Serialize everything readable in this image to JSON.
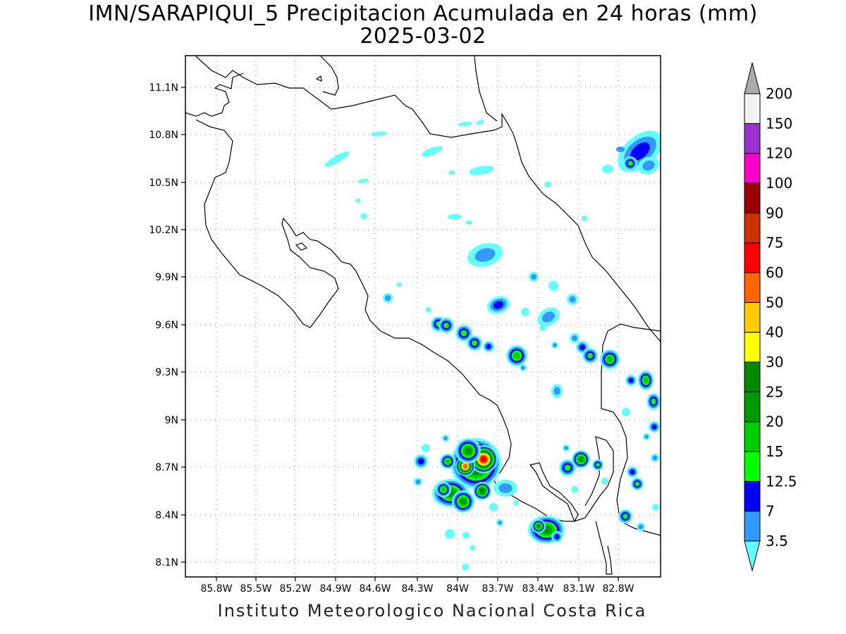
{
  "map": {
    "title": "IMN/SARAPIQUI_5 Precipitacion Acumulada en 24 horas (mm)",
    "date": "2025-03-02",
    "footer": "Instituto Meteorologico Nacional Costa Rica",
    "lat_labels": [
      "11.1N",
      "10.8N",
      "10.5N",
      "10.2N",
      "9.9N",
      "9.6N",
      "9.3N",
      "9N",
      "8.7N",
      "8.4N",
      "8.1N"
    ],
    "lon_labels": [
      "85.8W",
      "85.5W",
      "85.2W",
      "84.9W",
      "84.6W",
      "84.3W",
      "84W",
      "83.7W",
      "83.4W",
      "83.1W",
      "82.8W"
    ],
    "colorbar": {
      "labels": [
        "3.5",
        "7",
        "12.5",
        "15",
        "20",
        "25",
        "30",
        "40",
        "50",
        "60",
        "75",
        "90",
        "100",
        "120",
        "150",
        "200"
      ],
      "colors": [
        "#66ffff",
        "#3399ff",
        "#0000ff",
        "#00ff00",
        "#00cc00",
        "#009900",
        "#008800",
        "#ffff00",
        "#ffcc00",
        "#ff6600",
        "#ff0000",
        "#cc3300",
        "#990000",
        "#ff00cc",
        "#9933cc",
        "#f2f2f2",
        "#aaaaaa"
      ]
    }
  }
}
